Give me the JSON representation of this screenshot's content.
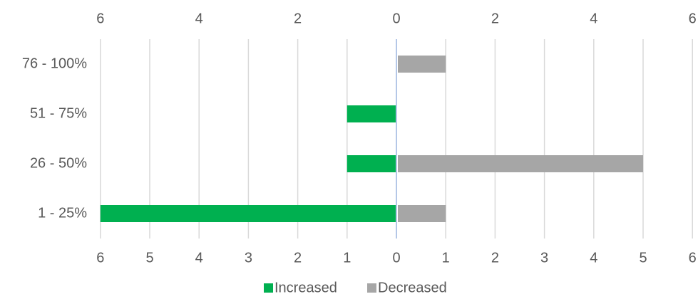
{
  "chart_data": {
    "type": "bar",
    "orientation": "horizontal",
    "layout": "butterfly",
    "categories": [
      "76 - 100%",
      "51 - 75%",
      "26 - 50%",
      "1 - 25%"
    ],
    "series": [
      {
        "name": "Increased",
        "values": [
          0,
          1,
          1,
          6
        ],
        "direction": "left",
        "color": "#00b050"
      },
      {
        "name": "Decreased",
        "values": [
          1,
          0,
          5,
          1
        ],
        "direction": "right",
        "color": "#a6a6a6"
      }
    ],
    "xlim": [
      0,
      6
    ],
    "top_axis_ticks": [
      "6",
      "4",
      "2",
      "0",
      "2",
      "4",
      "6"
    ],
    "bottom_axis_ticks": [
      "6",
      "5",
      "4",
      "3",
      "2",
      "1",
      "0",
      "1",
      "2",
      "3",
      "4",
      "5",
      "6"
    ],
    "grid": true,
    "legend": {
      "position": "bottom",
      "entries": [
        "Increased",
        "Decreased"
      ]
    },
    "colors": {
      "grid": "#d9d9d9",
      "center_line": "#b4c7e7",
      "text": "#595959"
    }
  }
}
